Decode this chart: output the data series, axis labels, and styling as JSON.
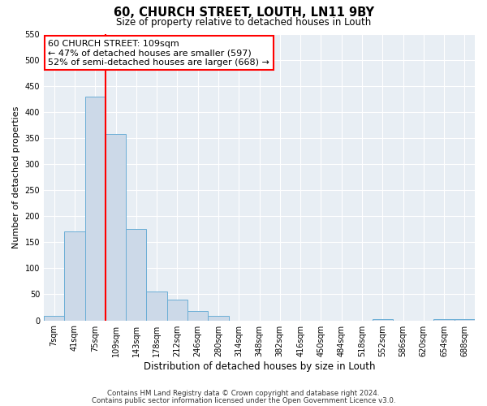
{
  "title": "60, CHURCH STREET, LOUTH, LN11 9BY",
  "subtitle": "Size of property relative to detached houses in Louth",
  "xlabel": "Distribution of detached houses by size in Louth",
  "ylabel": "Number of detached properties",
  "footnote1": "Contains HM Land Registry data © Crown copyright and database right 2024.",
  "footnote2": "Contains public sector information licensed under the Open Government Licence v3.0.",
  "bin_labels": [
    "7sqm",
    "41sqm",
    "75sqm",
    "109sqm",
    "143sqm",
    "178sqm",
    "212sqm",
    "246sqm",
    "280sqm",
    "314sqm",
    "348sqm",
    "382sqm",
    "416sqm",
    "450sqm",
    "484sqm",
    "518sqm",
    "552sqm",
    "586sqm",
    "620sqm",
    "654sqm",
    "688sqm"
  ],
  "bar_heights": [
    8,
    170,
    430,
    357,
    175,
    55,
    40,
    18,
    8,
    0,
    0,
    0,
    0,
    0,
    0,
    0,
    2,
    0,
    0,
    2,
    2
  ],
  "bar_color": "#ccd9e8",
  "bar_edge_color": "#6baed6",
  "red_line_index": 3,
  "ylim": [
    0,
    550
  ],
  "yticks": [
    0,
    50,
    100,
    150,
    200,
    250,
    300,
    350,
    400,
    450,
    500,
    550
  ],
  "annotation_title": "60 CHURCH STREET: 109sqm",
  "annotation_line1": "← 47% of detached houses are smaller (597)",
  "annotation_line2": "52% of semi-detached houses are larger (668) →",
  "bg_color": "#e8eef4"
}
